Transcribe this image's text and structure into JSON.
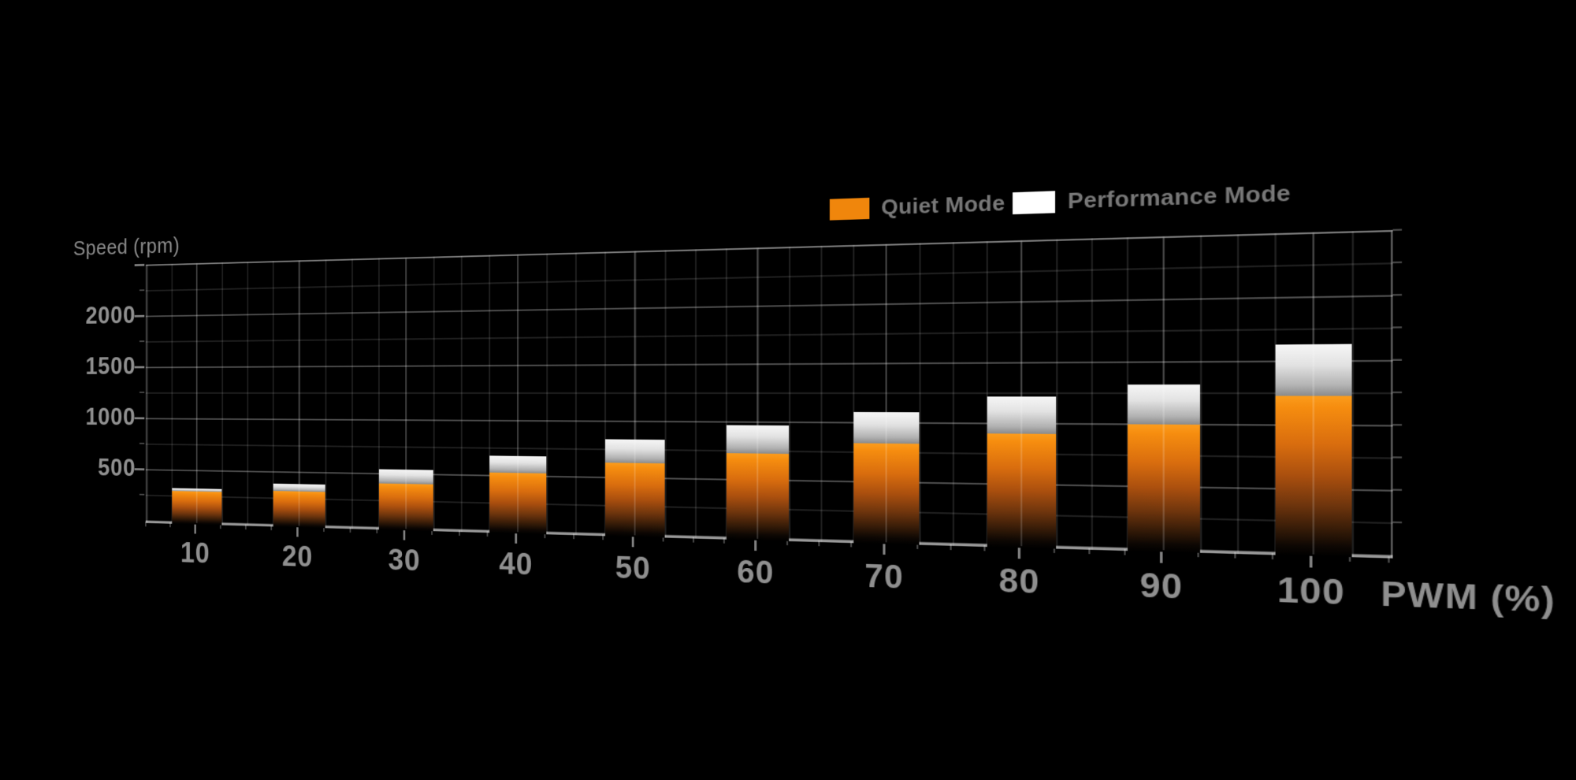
{
  "background_color": "#000000",
  "axes": {
    "y_title": "Speed (rpm)",
    "x_title": "PWM (%)",
    "y_tick_labels": [
      "500",
      "1000",
      "1500",
      "2000"
    ],
    "x_tick_labels": [
      "10",
      "20",
      "30",
      "40",
      "50",
      "60",
      "70",
      "80",
      "90",
      "100"
    ]
  },
  "legend": {
    "items": [
      {
        "label": "Quiet Mode",
        "color": "#F0860C"
      },
      {
        "label": "Performance Mode",
        "color": "#FFFFFF"
      }
    ]
  },
  "chart_data": {
    "type": "bar",
    "style": "3d-perspective-overlaid-bars",
    "title": "",
    "xlabel": "PWM (%)",
    "ylabel": "Speed (rpm)",
    "categories": [
      10,
      20,
      30,
      40,
      50,
      60,
      70,
      80,
      90,
      100
    ],
    "series": [
      {
        "name": "Quiet Mode",
        "color": "#F0860C",
        "values": [
          320,
          340,
          430,
          550,
          650,
          750,
          850,
          940,
          1020,
          1250
        ]
      },
      {
        "name": "Performance Mode",
        "color": "#FFFFFF",
        "values": [
          350,
          410,
          560,
          700,
          860,
          990,
          1110,
          1240,
          1340,
          1650
        ]
      }
    ],
    "ylim": [
      0,
      2500
    ],
    "ytick_minor_step": 250,
    "ytick_label_step": 500,
    "xtick_minor_step": 2.5,
    "grid": true,
    "grid_color": "#2b2b2b",
    "frame_color": "#555555",
    "label_color": "#8f8f8f",
    "legend_position": "top-right",
    "bar_render": "performance bar behind quiet bar; white cap gradient white-to-gray; quiet bar orange gradient fading to black at base"
  }
}
